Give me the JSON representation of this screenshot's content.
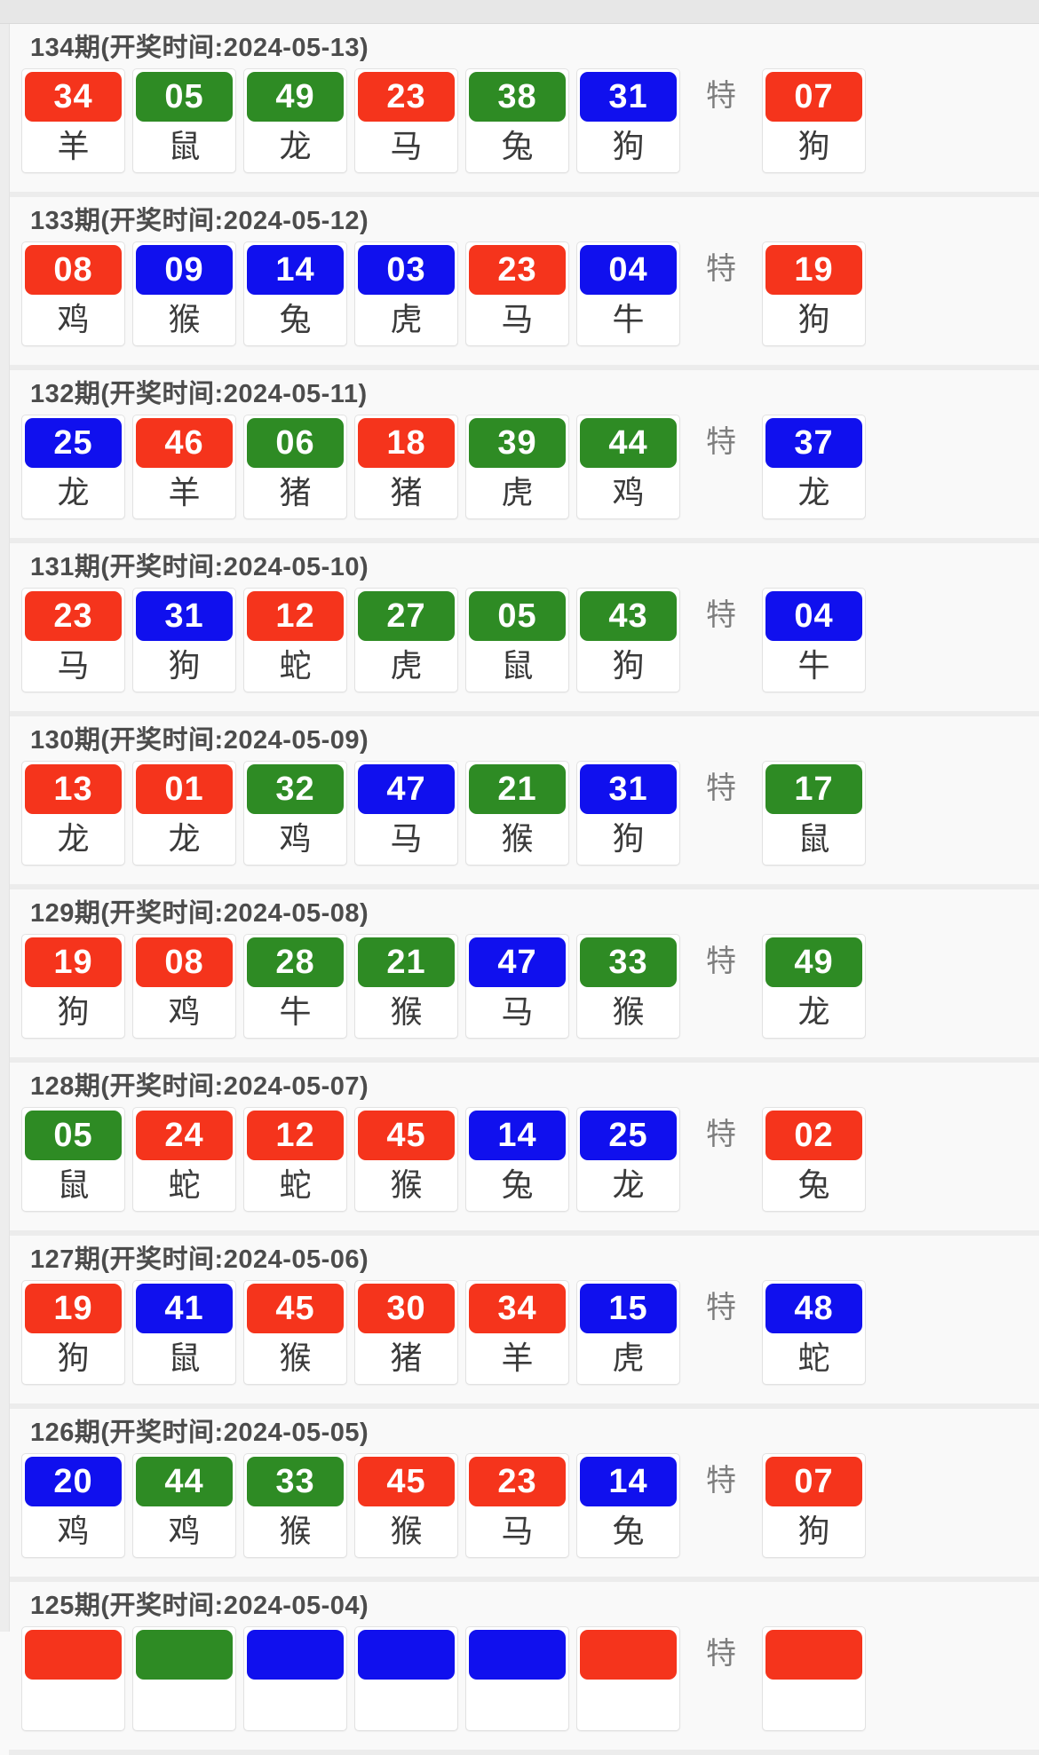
{
  "page": {
    "te_label": "特"
  },
  "palette": {
    "red": "#f5341c",
    "green": "#2e8b24",
    "blue": "#1010ee"
  },
  "draws": [
    {
      "period": "134",
      "title": "134期(开奖时间:2024-05-13)",
      "balls": [
        {
          "num": "34",
          "zodiac": "羊",
          "color": "red"
        },
        {
          "num": "05",
          "zodiac": "鼠",
          "color": "green"
        },
        {
          "num": "49",
          "zodiac": "龙",
          "color": "green"
        },
        {
          "num": "23",
          "zodiac": "马",
          "color": "red"
        },
        {
          "num": "38",
          "zodiac": "兔",
          "color": "green"
        },
        {
          "num": "31",
          "zodiac": "狗",
          "color": "blue"
        }
      ],
      "special": {
        "num": "07",
        "zodiac": "狗",
        "color": "red"
      }
    },
    {
      "period": "133",
      "title": "133期(开奖时间:2024-05-12)",
      "balls": [
        {
          "num": "08",
          "zodiac": "鸡",
          "color": "red"
        },
        {
          "num": "09",
          "zodiac": "猴",
          "color": "blue"
        },
        {
          "num": "14",
          "zodiac": "兔",
          "color": "blue"
        },
        {
          "num": "03",
          "zodiac": "虎",
          "color": "blue"
        },
        {
          "num": "23",
          "zodiac": "马",
          "color": "red"
        },
        {
          "num": "04",
          "zodiac": "牛",
          "color": "blue"
        }
      ],
      "special": {
        "num": "19",
        "zodiac": "狗",
        "color": "red"
      }
    },
    {
      "period": "132",
      "title": "132期(开奖时间:2024-05-11)",
      "balls": [
        {
          "num": "25",
          "zodiac": "龙",
          "color": "blue"
        },
        {
          "num": "46",
          "zodiac": "羊",
          "color": "red"
        },
        {
          "num": "06",
          "zodiac": "猪",
          "color": "green"
        },
        {
          "num": "18",
          "zodiac": "猪",
          "color": "red"
        },
        {
          "num": "39",
          "zodiac": "虎",
          "color": "green"
        },
        {
          "num": "44",
          "zodiac": "鸡",
          "color": "green"
        }
      ],
      "special": {
        "num": "37",
        "zodiac": "龙",
        "color": "blue"
      }
    },
    {
      "period": "131",
      "title": "131期(开奖时间:2024-05-10)",
      "balls": [
        {
          "num": "23",
          "zodiac": "马",
          "color": "red"
        },
        {
          "num": "31",
          "zodiac": "狗",
          "color": "blue"
        },
        {
          "num": "12",
          "zodiac": "蛇",
          "color": "red"
        },
        {
          "num": "27",
          "zodiac": "虎",
          "color": "green"
        },
        {
          "num": "05",
          "zodiac": "鼠",
          "color": "green"
        },
        {
          "num": "43",
          "zodiac": "狗",
          "color": "green"
        }
      ],
      "special": {
        "num": "04",
        "zodiac": "牛",
        "color": "blue"
      }
    },
    {
      "period": "130",
      "title": "130期(开奖时间:2024-05-09)",
      "balls": [
        {
          "num": "13",
          "zodiac": "龙",
          "color": "red"
        },
        {
          "num": "01",
          "zodiac": "龙",
          "color": "red"
        },
        {
          "num": "32",
          "zodiac": "鸡",
          "color": "green"
        },
        {
          "num": "47",
          "zodiac": "马",
          "color": "blue"
        },
        {
          "num": "21",
          "zodiac": "猴",
          "color": "green"
        },
        {
          "num": "31",
          "zodiac": "狗",
          "color": "blue"
        }
      ],
      "special": {
        "num": "17",
        "zodiac": "鼠",
        "color": "green"
      }
    },
    {
      "period": "129",
      "title": "129期(开奖时间:2024-05-08)",
      "balls": [
        {
          "num": "19",
          "zodiac": "狗",
          "color": "red"
        },
        {
          "num": "08",
          "zodiac": "鸡",
          "color": "red"
        },
        {
          "num": "28",
          "zodiac": "牛",
          "color": "green"
        },
        {
          "num": "21",
          "zodiac": "猴",
          "color": "green"
        },
        {
          "num": "47",
          "zodiac": "马",
          "color": "blue"
        },
        {
          "num": "33",
          "zodiac": "猴",
          "color": "green"
        }
      ],
      "special": {
        "num": "49",
        "zodiac": "龙",
        "color": "green"
      }
    },
    {
      "period": "128",
      "title": "128期(开奖时间:2024-05-07)",
      "balls": [
        {
          "num": "05",
          "zodiac": "鼠",
          "color": "green"
        },
        {
          "num": "24",
          "zodiac": "蛇",
          "color": "red"
        },
        {
          "num": "12",
          "zodiac": "蛇",
          "color": "red"
        },
        {
          "num": "45",
          "zodiac": "猴",
          "color": "red"
        },
        {
          "num": "14",
          "zodiac": "兔",
          "color": "blue"
        },
        {
          "num": "25",
          "zodiac": "龙",
          "color": "blue"
        }
      ],
      "special": {
        "num": "02",
        "zodiac": "兔",
        "color": "red"
      }
    },
    {
      "period": "127",
      "title": "127期(开奖时间:2024-05-06)",
      "balls": [
        {
          "num": "19",
          "zodiac": "狗",
          "color": "red"
        },
        {
          "num": "41",
          "zodiac": "鼠",
          "color": "blue"
        },
        {
          "num": "45",
          "zodiac": "猴",
          "color": "red"
        },
        {
          "num": "30",
          "zodiac": "猪",
          "color": "red"
        },
        {
          "num": "34",
          "zodiac": "羊",
          "color": "red"
        },
        {
          "num": "15",
          "zodiac": "虎",
          "color": "blue"
        }
      ],
      "special": {
        "num": "48",
        "zodiac": "蛇",
        "color": "blue"
      }
    },
    {
      "period": "126",
      "title": "126期(开奖时间:2024-05-05)",
      "balls": [
        {
          "num": "20",
          "zodiac": "鸡",
          "color": "blue"
        },
        {
          "num": "44",
          "zodiac": "鸡",
          "color": "green"
        },
        {
          "num": "33",
          "zodiac": "猴",
          "color": "green"
        },
        {
          "num": "45",
          "zodiac": "猴",
          "color": "red"
        },
        {
          "num": "23",
          "zodiac": "马",
          "color": "red"
        },
        {
          "num": "14",
          "zodiac": "兔",
          "color": "blue"
        }
      ],
      "special": {
        "num": "07",
        "zodiac": "狗",
        "color": "red"
      }
    },
    {
      "period": "125",
      "title": "125期(开奖时间:2024-05-04)",
      "balls": [
        {
          "num": "",
          "zodiac": "",
          "color": "red"
        },
        {
          "num": "",
          "zodiac": "",
          "color": "green"
        },
        {
          "num": "",
          "zodiac": "",
          "color": "blue"
        },
        {
          "num": "",
          "zodiac": "",
          "color": "blue"
        },
        {
          "num": "",
          "zodiac": "",
          "color": "blue"
        },
        {
          "num": "",
          "zodiac": "",
          "color": "red"
        }
      ],
      "special": {
        "num": "",
        "zodiac": "",
        "color": "red"
      }
    }
  ]
}
